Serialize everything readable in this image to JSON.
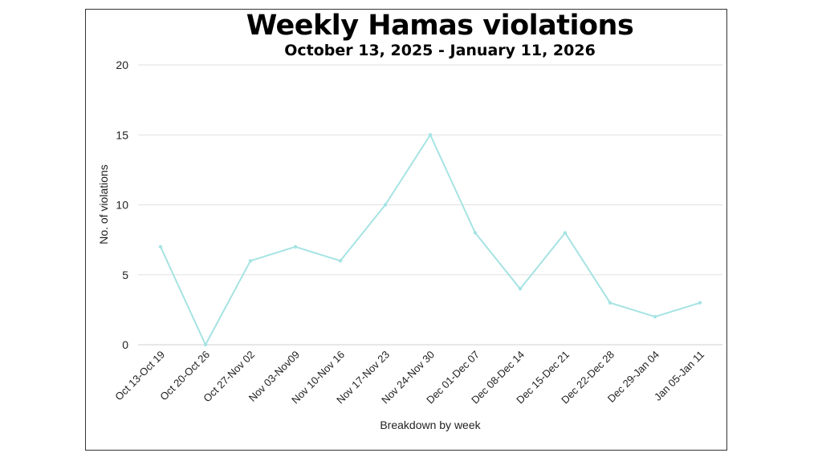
{
  "chart_data": {
    "type": "line",
    "title": "Weekly Hamas violations",
    "subtitle": "October 13, 2025 - January 11, 2026",
    "xlabel": "Breakdown by week",
    "ylabel": "No. of violations",
    "ylim": [
      0,
      20
    ],
    "yticks": [
      0,
      5,
      10,
      15,
      20
    ],
    "grid": true,
    "categories": [
      "Oct 13-Oct 19",
      "Oct 20-Oct 26",
      "Oct 27-Nov 02",
      "Nov 03-Nov09",
      "Nov 10-Nov 16",
      "Nov 17-Nov 23",
      "Nov 24-Nov 30",
      "Dec 01-Dec 07",
      "Dec 08-Dec 14",
      "Dec 15-Dec 21",
      "Dec 22-Dec 28",
      "Dec 29-Jan 04",
      "Jan 05-Jan 11"
    ],
    "series": [
      {
        "values": [
          7,
          0,
          6,
          7,
          6,
          10,
          15,
          8,
          4,
          8,
          3,
          2,
          3
        ]
      }
    ],
    "line_color": "#a6e3e3",
    "grid_color": "#e2e2e2"
  }
}
